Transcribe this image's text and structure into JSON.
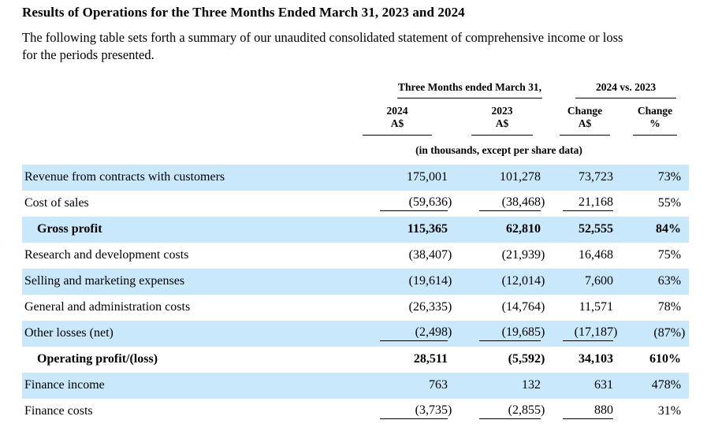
{
  "page": {
    "title": "Results of Operations for the Three Months Ended March 31, 2023 and 2024",
    "intro_line1": "The following table sets forth a summary of our unaudited consolidated statement of comprehensive income or loss",
    "intro_line2": "for the periods presented."
  },
  "table": {
    "group_headers": {
      "period": "Three Months ended March 31,",
      "comparison": "2024 vs. 2023"
    },
    "columns": [
      {
        "line1": "2024",
        "line2": "A$"
      },
      {
        "line1": "2023",
        "line2": "A$"
      },
      {
        "line1": "Change",
        "line2": "A$"
      },
      {
        "line1": "Change",
        "line2": "%"
      }
    ],
    "units_note": "(in thousands, except per share data)",
    "rows": [
      {
        "label": "Revenue from contracts with customers",
        "indent": false,
        "bold": false,
        "shaded": true,
        "values": [
          "175,001",
          "101,278",
          "73,723",
          "73%"
        ],
        "underline_cols": []
      },
      {
        "label": "Cost of sales",
        "indent": false,
        "bold": false,
        "shaded": false,
        "values": [
          "(59,636)",
          "(38,468)",
          "21,168",
          "55%"
        ],
        "underline_cols": [
          0,
          1,
          2
        ]
      },
      {
        "label": "Gross profit",
        "indent": true,
        "bold": true,
        "shaded": true,
        "values": [
          "115,365",
          "62,810",
          "52,555",
          "84%"
        ],
        "underline_cols": []
      },
      {
        "label": "Research and development costs",
        "indent": false,
        "bold": false,
        "shaded": false,
        "values": [
          "(38,407)",
          "(21,939)",
          "16,468",
          "75%"
        ],
        "underline_cols": []
      },
      {
        "label": "Selling and marketing expenses",
        "indent": false,
        "bold": false,
        "shaded": true,
        "values": [
          "(19,614)",
          "(12,014)",
          "7,600",
          "63%"
        ],
        "underline_cols": []
      },
      {
        "label": "General and administration costs",
        "indent": false,
        "bold": false,
        "shaded": false,
        "values": [
          "(26,335)",
          "(14,764)",
          "11,571",
          "78%"
        ],
        "underline_cols": []
      },
      {
        "label": "Other losses (net)",
        "indent": false,
        "bold": false,
        "shaded": true,
        "values": [
          "(2,498)",
          "(19,685)",
          "(17,187)",
          "(87%)"
        ],
        "underline_cols": [
          0,
          1,
          2
        ]
      },
      {
        "label": "Operating profit/(loss)",
        "indent": true,
        "bold": true,
        "shaded": false,
        "values": [
          "28,511",
          "(5,592)",
          "34,103",
          "610%"
        ],
        "underline_cols": []
      },
      {
        "label": "Finance income",
        "indent": false,
        "bold": false,
        "shaded": true,
        "values": [
          "763",
          "132",
          "631",
          "478%"
        ],
        "underline_cols": []
      },
      {
        "label": "Finance costs",
        "indent": false,
        "bold": false,
        "shaded": false,
        "values": [
          "(3,735)",
          "(2,855)",
          "880",
          "31%"
        ],
        "underline_cols": [
          0,
          1,
          2
        ]
      }
    ]
  },
  "colors": {
    "row_highlight": "#C9E8FB",
    "text": "#000000",
    "rule": "#000000"
  }
}
